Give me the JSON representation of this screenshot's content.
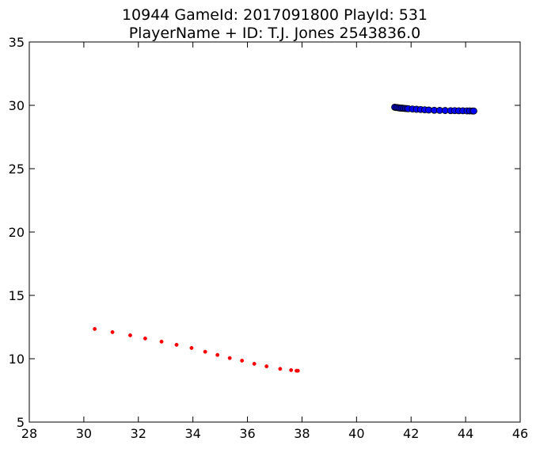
{
  "chart_data": {
    "type": "scatter",
    "title": "10944 GameId: 2017091800 PlayId: 531",
    "subtitle": "PlayerName + ID: T.J. Jones 2543836.0",
    "xlabel": "",
    "ylabel": "",
    "xlim": [
      28,
      46
    ],
    "ylim": [
      5,
      35
    ],
    "xticks": [
      28,
      30,
      32,
      34,
      36,
      38,
      40,
      42,
      44,
      46
    ],
    "yticks": [
      5,
      10,
      15,
      20,
      25,
      30,
      35
    ],
    "grid": false,
    "series": [
      {
        "marker": "circle-large",
        "color": "#0000ff",
        "edgecolor": "#000000",
        "x": [
          41.4,
          41.45,
          41.5,
          41.55,
          41.6,
          41.65,
          41.7,
          41.75,
          41.8,
          41.85,
          41.9,
          42.05,
          42.2,
          42.35,
          42.5,
          42.65,
          42.85,
          43.05,
          43.25,
          43.45,
          43.6,
          43.75,
          43.9,
          44.05,
          44.15,
          44.25,
          44.3
        ],
        "y": [
          29.85,
          29.83,
          29.82,
          29.8,
          29.78,
          29.78,
          29.77,
          29.76,
          29.75,
          29.74,
          29.73,
          29.71,
          29.69,
          29.67,
          29.65,
          29.63,
          29.61,
          29.6,
          29.59,
          29.58,
          29.58,
          29.57,
          29.57,
          29.56,
          29.56,
          29.55,
          29.55
        ]
      },
      {
        "marker": "dot-small",
        "color": "#ff0000",
        "edgecolor": "#ff0000",
        "x": [
          30.4,
          31.05,
          31.7,
          32.25,
          32.85,
          33.4,
          33.95,
          34.45,
          34.9,
          35.35,
          35.8,
          36.25,
          36.7,
          37.2,
          37.6,
          37.8,
          37.85
        ],
        "y": [
          12.35,
          12.1,
          11.85,
          11.6,
          11.35,
          11.1,
          10.85,
          10.55,
          10.3,
          10.05,
          9.85,
          9.6,
          9.4,
          9.2,
          9.1,
          9.05,
          9.05
        ]
      }
    ]
  }
}
